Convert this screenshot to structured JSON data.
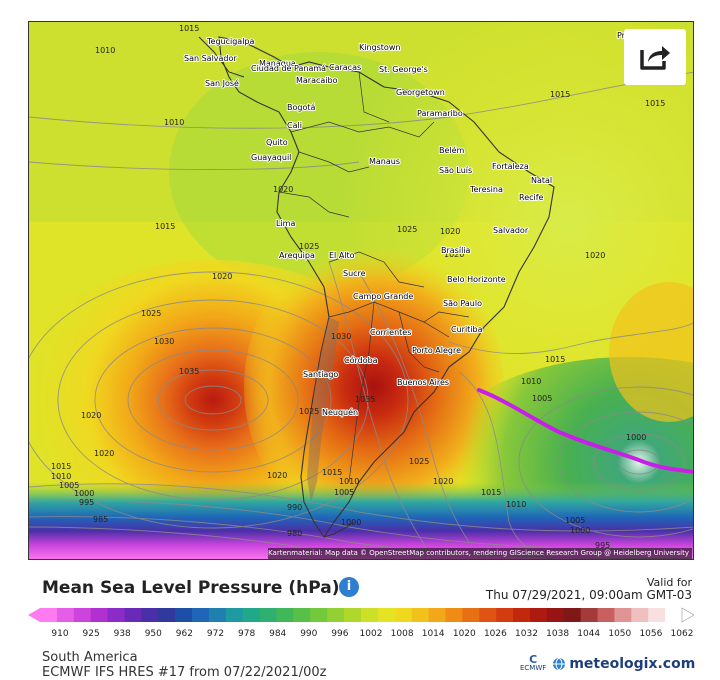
{
  "map": {
    "isobar_labels": [
      {
        "text": "1010"
      },
      {
        "text": "1015"
      },
      {
        "text": "1010"
      },
      {
        "text": "1020"
      },
      {
        "text": "1015"
      },
      {
        "text": "1020"
      },
      {
        "text": "1025"
      },
      {
        "text": "1030"
      },
      {
        "text": "1035"
      },
      {
        "text": "1020"
      },
      {
        "text": "1020"
      },
      {
        "text": "1015"
      },
      {
        "text": "1010"
      },
      {
        "text": "1005"
      },
      {
        "text": "1000"
      },
      {
        "text": "995"
      },
      {
        "text": "985"
      },
      {
        "text": "1025"
      },
      {
        "text": "1020"
      },
      {
        "text": "1015"
      },
      {
        "text": "1010"
      },
      {
        "text": "1005"
      },
      {
        "text": "1000"
      },
      {
        "text": "1015"
      },
      {
        "text": "1020"
      },
      {
        "text": "1025"
      },
      {
        "text": "1020"
      },
      {
        "text": "1015"
      },
      {
        "text": "1010"
      },
      {
        "text": "1005"
      },
      {
        "text": "1000"
      },
      {
        "text": "995"
      },
      {
        "text": "1015"
      },
      {
        "text": "1015"
      },
      {
        "text": "1020"
      },
      {
        "text": "1030"
      },
      {
        "text": "1025"
      },
      {
        "text": "1035"
      },
      {
        "text": "1025"
      },
      {
        "text": "1020"
      },
      {
        "text": "1010"
      },
      {
        "text": "1005"
      },
      {
        "text": "1000"
      },
      {
        "text": "990"
      },
      {
        "text": "980"
      }
    ],
    "cities": [
      {
        "name": "Tegucigalpa"
      },
      {
        "name": "San Salvador"
      },
      {
        "name": "Managua"
      },
      {
        "name": "San José"
      },
      {
        "name": "Ciudad de Panamá"
      },
      {
        "name": "Maracaibo"
      },
      {
        "name": "Caracas"
      },
      {
        "name": "Kingstown"
      },
      {
        "name": "St. George's"
      },
      {
        "name": "Georgetown"
      },
      {
        "name": "Paramaribo"
      },
      {
        "name": "Bogotá"
      },
      {
        "name": "Cali"
      },
      {
        "name": "Quito"
      },
      {
        "name": "Guayaquil"
      },
      {
        "name": "Manaus"
      },
      {
        "name": "Belém"
      },
      {
        "name": "São Luís"
      },
      {
        "name": "Fortaleza"
      },
      {
        "name": "Teresina"
      },
      {
        "name": "Natal"
      },
      {
        "name": "Recife"
      },
      {
        "name": "Salvador"
      },
      {
        "name": "Lima"
      },
      {
        "name": "Brasília"
      },
      {
        "name": "Arequipa"
      },
      {
        "name": "El Alto"
      },
      {
        "name": "Sucre"
      },
      {
        "name": "Belo Horizonte"
      },
      {
        "name": "Campo Grande"
      },
      {
        "name": "São Paulo"
      },
      {
        "name": "Curitiba"
      },
      {
        "name": "Corrientes"
      },
      {
        "name": "Porto Alegre"
      },
      {
        "name": "Córdoba"
      },
      {
        "name": "Santiago"
      },
      {
        "name": "Buenos Aires"
      },
      {
        "name": "Neuquén"
      },
      {
        "name": "Praia"
      }
    ],
    "attribution": "Kartenmaterial: Map data © OpenStreetMap contributors, rendering GIScience Research Group @ Heidelberg University",
    "share_icon": "share-icon"
  },
  "legend": {
    "title": "Mean Sea Level Pressure (hPa)",
    "info_icon": "info-icon",
    "valid_label": "Valid for",
    "valid_time": "Thu 07/29/2021, 09:00am GMT-03",
    "ticks": [
      "910",
      "925",
      "938",
      "950",
      "962",
      "972",
      "978",
      "984",
      "990",
      "996",
      "1002",
      "1008",
      "1014",
      "1020",
      "1026",
      "1032",
      "1038",
      "1044",
      "1050",
      "1056",
      "1062"
    ],
    "colors": [
      "#ff7bf0",
      "#e65ee8",
      "#cc44dd",
      "#b030d0",
      "#8c2cc8",
      "#6a2ab8",
      "#4b2fa8",
      "#2f3a9c",
      "#1e4fa8",
      "#1f66b8",
      "#1f80b0",
      "#1e9aa0",
      "#20a888",
      "#2fb070",
      "#40b858",
      "#58c048",
      "#74c83c",
      "#92d034",
      "#b0d82c",
      "#cce028",
      "#e4e424",
      "#f0d820",
      "#f2c21c",
      "#f2a818",
      "#ee8c16",
      "#e87014",
      "#df5412",
      "#d23c10",
      "#c2280e",
      "#ae1a10",
      "#961414",
      "#801818",
      "#a43a3a",
      "#c86060",
      "#e09494",
      "#f0c0c0",
      "#f8e0e0",
      "#ffffff"
    ]
  },
  "footer": {
    "region": "South America",
    "model": "ECMWF IFS HRES #17 from 07/22/2021/00z",
    "ecmwf_logo_text": "ECMWF",
    "brand": "meteologix.com"
  }
}
